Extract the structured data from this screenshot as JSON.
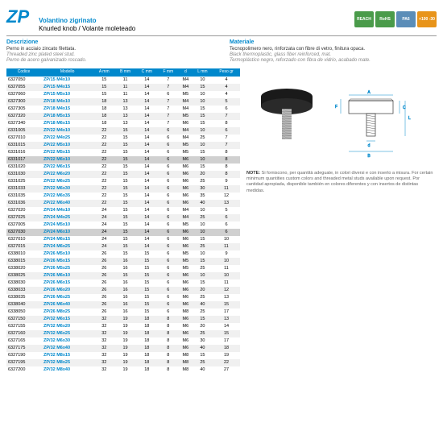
{
  "header": {
    "code": "ZP",
    "title_it": "Volantino zigrinato",
    "title_en": "Knurled knob / Volante moleteado"
  },
  "badges": [
    {
      "label": "REACH",
      "bg": "#4a9b4a"
    },
    {
      "label": "RoHS",
      "bg": "#4a9b4a"
    },
    {
      "label": "PA6",
      "bg": "#5b8db8"
    },
    {
      "label": "+100\n-30",
      "bg": "#e8941a"
    }
  ],
  "desc": {
    "left": {
      "h": "Descrizione",
      "main": "Perno in acciaio zincato filettata.",
      "sub1": "Threaded zinc plated steel stud.",
      "sub2": "Perno de acero galvanizado roscado."
    },
    "right": {
      "h": "Materiale",
      "main": "Tecnopolimero nero, rinforzata con fibre di vetro, finitura opaca.",
      "sub1": "Black thermoplastic, glass fiber reinforced, mat.",
      "sub2": "Termoplástico negro, reforzado con fibra de vidrio, acabado mate."
    }
  },
  "columns": [
    "Codice",
    "Modello",
    "A mm",
    "B mm",
    "C mm",
    "F mm",
    "d",
    "L mm",
    "Peso gr"
  ],
  "rows": [
    [
      "6327050",
      "ZP/15 M4x10",
      "15",
      "11",
      "14",
      "7",
      "M4",
      "10",
      "4",
      ""
    ],
    [
      "6327055",
      "ZP/15 M4x15",
      "15",
      "11",
      "14",
      "7",
      "M4",
      "15",
      "4",
      ""
    ],
    [
      "6327060",
      "ZP/15 M5x10",
      "15",
      "11",
      "14",
      "6",
      "M5",
      "10",
      "4",
      ""
    ],
    [
      "6327300",
      "ZP/18 M4x10",
      "18",
      "13",
      "14",
      "7",
      "M4",
      "10",
      "5",
      ""
    ],
    [
      "6327305",
      "ZP/18 M4x15",
      "18",
      "13",
      "14",
      "7",
      "M4",
      "15",
      "6",
      ""
    ],
    [
      "6327320",
      "ZP/18 M5x15",
      "18",
      "13",
      "14",
      "7",
      "M5",
      "15",
      "7",
      ""
    ],
    [
      "6327340",
      "ZP/18 M6x15",
      "18",
      "13",
      "14",
      "7",
      "M6",
      "15",
      "8",
      ""
    ],
    [
      "6331005",
      "ZP/22 M4x10",
      "22",
      "15",
      "14",
      "6",
      "M4",
      "10",
      "6",
      ""
    ],
    [
      "6327010",
      "ZP/22 M4x25",
      "22",
      "15",
      "14",
      "6",
      "M4",
      "25",
      "7",
      ""
    ],
    [
      "6331015",
      "ZP/22 M5x10",
      "22",
      "15",
      "14",
      "6",
      "M5",
      "10",
      "7",
      ""
    ],
    [
      "6331016",
      "ZP/22 M5x15",
      "22",
      "15",
      "14",
      "6",
      "M5",
      "15",
      "8",
      ""
    ],
    [
      "6331017",
      "ZP/22 M6x10",
      "22",
      "15",
      "14",
      "6",
      "M6",
      "10",
      "8",
      "hl"
    ],
    [
      "6331020",
      "ZP/22 M6x15",
      "22",
      "15",
      "14",
      "6",
      "M6",
      "15",
      "8",
      ""
    ],
    [
      "6331030",
      "ZP/22 M6x20",
      "22",
      "15",
      "14",
      "6",
      "M6",
      "20",
      "8",
      ""
    ],
    [
      "6331025",
      "ZP/22 M6x25",
      "22",
      "15",
      "14",
      "6",
      "M6",
      "25",
      "9",
      ""
    ],
    [
      "6331033",
      "ZP/22 M6x30",
      "22",
      "15",
      "14",
      "6",
      "M6",
      "30",
      "11",
      ""
    ],
    [
      "6331035",
      "ZP/22 M6x35",
      "22",
      "15",
      "14",
      "6",
      "M6",
      "35",
      "12",
      ""
    ],
    [
      "6331036",
      "ZP/22 M6x40",
      "22",
      "15",
      "14",
      "6",
      "M6",
      "40",
      "13",
      ""
    ],
    [
      "6327020",
      "ZP/24 M4x10",
      "24",
      "15",
      "14",
      "6",
      "M4",
      "10",
      "5",
      ""
    ],
    [
      "6327025",
      "ZP/24 M4x25",
      "24",
      "15",
      "14",
      "6",
      "M4",
      "25",
      "6",
      ""
    ],
    [
      "6327005",
      "ZP/24 M5x10",
      "24",
      "15",
      "14",
      "6",
      "M5",
      "10",
      "6",
      ""
    ],
    [
      "6327030",
      "ZP/24 M6x10",
      "24",
      "15",
      "14",
      "6",
      "M6",
      "10",
      "6",
      "hl"
    ],
    [
      "6327010",
      "ZP/24 M6x15",
      "24",
      "15",
      "14",
      "6",
      "M6",
      "15",
      "10",
      ""
    ],
    [
      "6327015",
      "ZP/24 M6x25",
      "24",
      "15",
      "14",
      "6",
      "M6",
      "25",
      "11",
      ""
    ],
    [
      "6338010",
      "ZP/26 M5x10",
      "26",
      "15",
      "15",
      "6",
      "M5",
      "10",
      "9",
      ""
    ],
    [
      "6338015",
      "ZP/26 M5x15",
      "26",
      "16",
      "15",
      "6",
      "M5",
      "15",
      "10",
      ""
    ],
    [
      "6338020",
      "ZP/26 M5x25",
      "26",
      "16",
      "15",
      "6",
      "M5",
      "25",
      "11",
      ""
    ],
    [
      "6338025",
      "ZP/26 M6x10",
      "26",
      "15",
      "15",
      "6",
      "M6",
      "10",
      "10",
      ""
    ],
    [
      "6338030",
      "ZP/26 M6x15",
      "26",
      "16",
      "15",
      "6",
      "M6",
      "15",
      "11",
      ""
    ],
    [
      "6338033",
      "ZP/26 M6x20",
      "26",
      "16",
      "15",
      "6",
      "M6",
      "20",
      "12",
      ""
    ],
    [
      "6338035",
      "ZP/26 M6x25",
      "26",
      "16",
      "15",
      "6",
      "M6",
      "25",
      "13",
      ""
    ],
    [
      "6338040",
      "ZP/26 M6x40",
      "26",
      "16",
      "15",
      "6",
      "M6",
      "40",
      "15",
      ""
    ],
    [
      "6338050",
      "ZP/26 M8x25",
      "26",
      "16",
      "15",
      "6",
      "M8",
      "25",
      "17",
      ""
    ],
    [
      "6327150",
      "ZP/32 M6x15",
      "32",
      "19",
      "18",
      "8",
      "M6",
      "15",
      "13",
      ""
    ],
    [
      "6327155",
      "ZP/32 M6x20",
      "32",
      "19",
      "18",
      "8",
      "M6",
      "20",
      "14",
      ""
    ],
    [
      "6327160",
      "ZP/32 M6x25",
      "32",
      "19",
      "18",
      "8",
      "M6",
      "25",
      "15",
      ""
    ],
    [
      "6327165",
      "ZP/32 M6x30",
      "32",
      "19",
      "18",
      "8",
      "M6",
      "30",
      "17",
      ""
    ],
    [
      "6327175",
      "ZP/32 M6x40",
      "32",
      "19",
      "18",
      "8",
      "M6",
      "40",
      "18",
      ""
    ],
    [
      "6327190",
      "ZP/32 M8x15",
      "32",
      "19",
      "18",
      "8",
      "M8",
      "15",
      "19",
      ""
    ],
    [
      "6327195",
      "ZP/32 M8x25",
      "32",
      "19",
      "18",
      "8",
      "M8",
      "25",
      "22",
      ""
    ],
    [
      "6327200",
      "ZP/32 M8x40",
      "32",
      "19",
      "18",
      "8",
      "M8",
      "40",
      "27",
      ""
    ]
  ],
  "note": {
    "label": "NOTE:",
    "text": "Si forniscono, per quantità adeguate, in colori diversi e con inserto a misura.\nFor certain minimum quantities custom colors and threaded metal studs available upon request.\nPor cantidad apropiada, disponible también en colores diferentes y con insertos de distintas medidas."
  },
  "colors": {
    "primary": "#0088cc",
    "badge_green": "#4a9b4a",
    "badge_blue": "#5b8db8",
    "badge_orange": "#e8941a"
  }
}
